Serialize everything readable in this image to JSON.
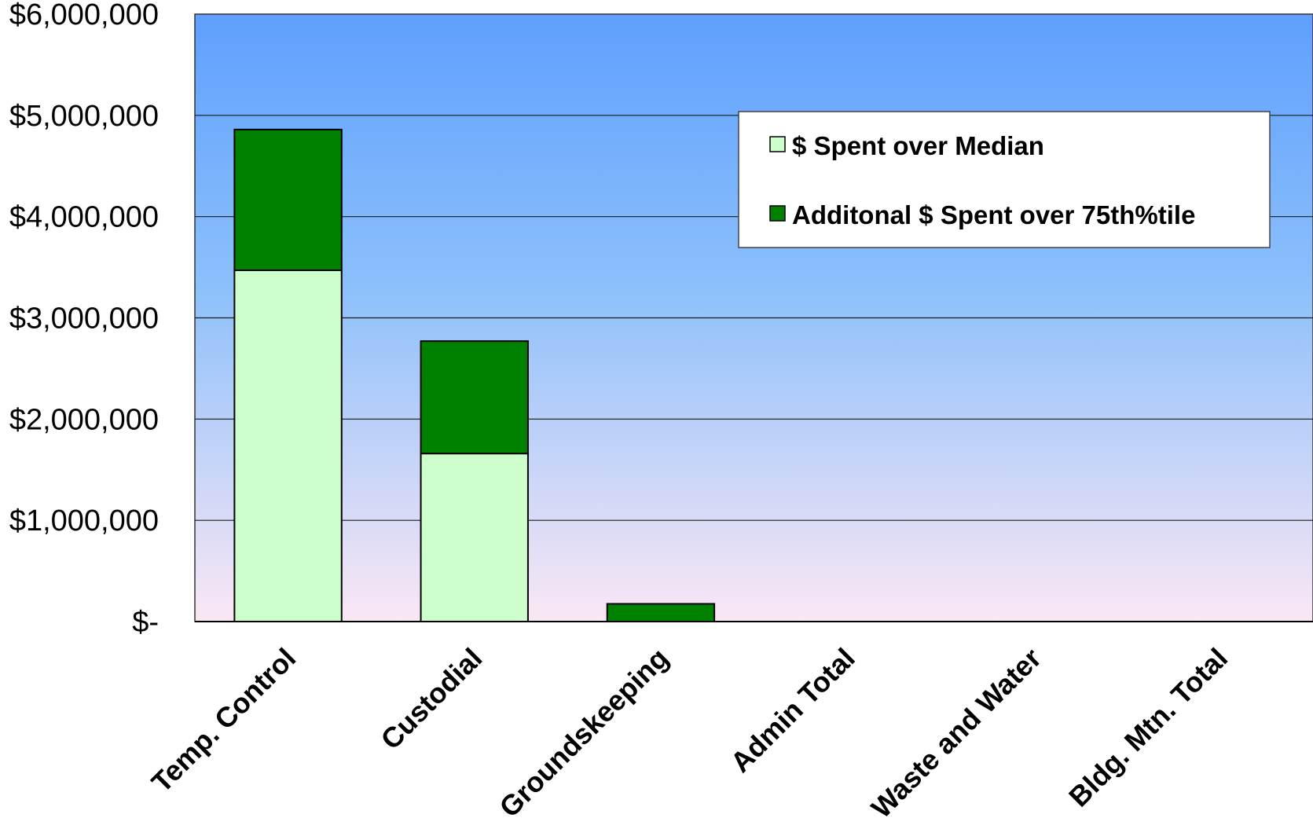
{
  "chart_data": {
    "type": "bar",
    "stacked": true,
    "categories": [
      "Temp. Control",
      "Custodial",
      "Groundskeeping",
      "Admin Total",
      "Waste and Water",
      "Bldg. Mtn. Total"
    ],
    "series": [
      {
        "name": "$ Spent over Median",
        "color": "#ccffcc",
        "values": [
          3470000,
          1660000,
          0,
          0,
          0,
          0
        ]
      },
      {
        "name": "Additonal $ Spent over 75th%tile",
        "color": "#008000",
        "values": [
          1390000,
          1110000,
          175000,
          0,
          0,
          0
        ]
      }
    ],
    "yticks": [
      {
        "value": 0,
        "label": "$-"
      },
      {
        "value": 1000000,
        "label": "$1,000,000"
      },
      {
        "value": 2000000,
        "label": "$2,000,000"
      },
      {
        "value": 3000000,
        "label": "$3,000,000"
      },
      {
        "value": 4000000,
        "label": "$4,000,000"
      },
      {
        "value": 5000000,
        "label": "$5,000,000"
      },
      {
        "value": 6000000,
        "label": "$6,000,000"
      }
    ],
    "ylim": [
      0,
      6000000
    ],
    "grid": true,
    "legend_position": "top-right",
    "background_gradient": [
      "#5fa0ff",
      "#8cc0fb",
      "#fbe7f5"
    ],
    "title": "",
    "xlabel": "",
    "ylabel": ""
  }
}
